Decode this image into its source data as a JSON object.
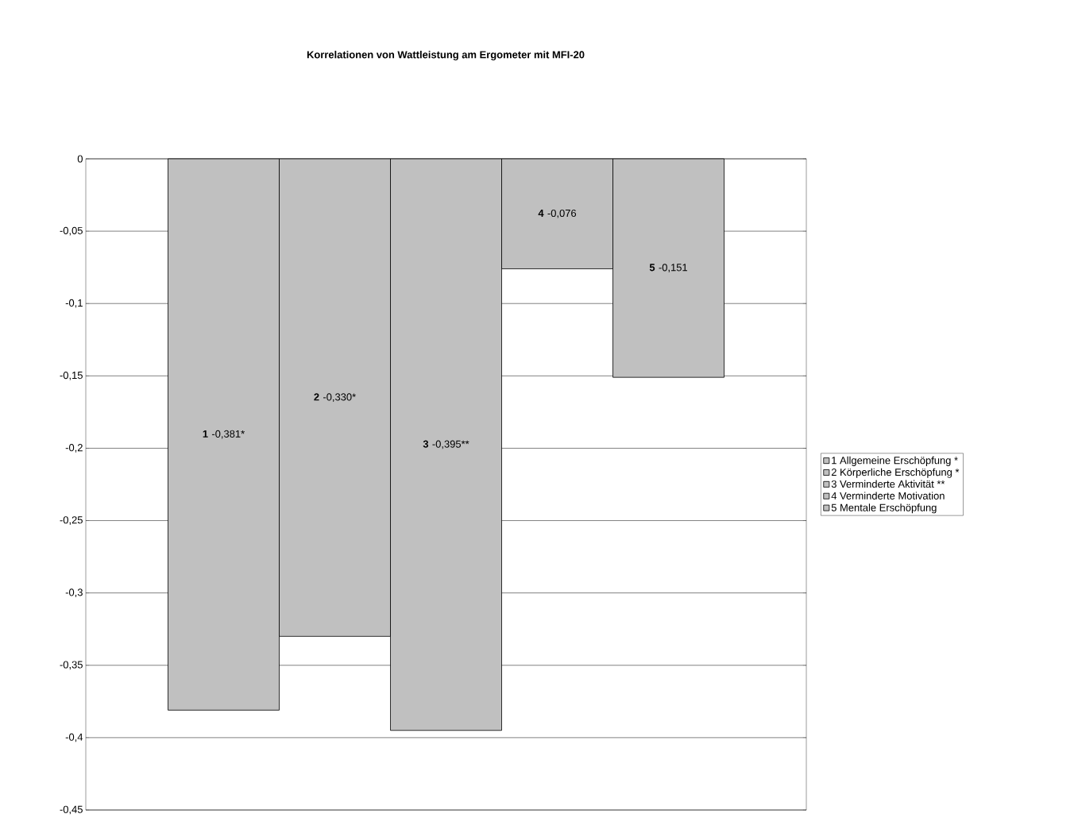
{
  "chart_data": {
    "type": "bar",
    "title": "Korrelationen von Wattleistung am Ergometer mit MFI-20",
    "categories": [
      null
    ],
    "series": [
      {
        "name": "1 Allgemeine Erschöpfung *",
        "color": "#c0c0c0",
        "values": [
          -0.381
        ],
        "value_labels": [
          "**1** -0,381*"
        ]
      },
      {
        "name": "2 Körperliche Erschöpfung *",
        "color": "#c0c0c0",
        "values": [
          -0.33
        ],
        "value_labels": [
          "**2** -0,330*"
        ]
      },
      {
        "name": "3 Verminderte Aktivität **",
        "color": "#c0c0c0",
        "values": [
          -0.395
        ],
        "value_labels": [
          "**3** -0,395**"
        ]
      },
      {
        "name": "4 Verminderte Motivation",
        "color": "#c0c0c0",
        "values": [
          -0.076
        ],
        "value_labels": [
          "**4** -0,076"
        ]
      },
      {
        "name": "5 Mentale Erschöpfung",
        "color": "#c0c0c0",
        "values": [
          -0.151
        ],
        "value_labels": [
          "**5** -0,151"
        ]
      }
    ],
    "ylim": [
      -0.45,
      0
    ],
    "yticks": [
      {
        "value": -0.45,
        "label": "-0,45"
      },
      {
        "value": -0.4,
        "label": "-0,4"
      },
      {
        "value": -0.35,
        "label": "-0,35"
      },
      {
        "value": -0.3,
        "label": "-0,3"
      },
      {
        "value": -0.25,
        "label": "-0,25"
      },
      {
        "value": -0.2,
        "label": "-0,2"
      },
      {
        "value": -0.15,
        "label": "-0,15"
      },
      {
        "value": -0.1,
        "label": "-0,1"
      },
      {
        "value": -0.05,
        "label": "-0,05"
      },
      0
    ],
    "grid": "y",
    "legend": "right",
    "tick_labels": "y"
  }
}
